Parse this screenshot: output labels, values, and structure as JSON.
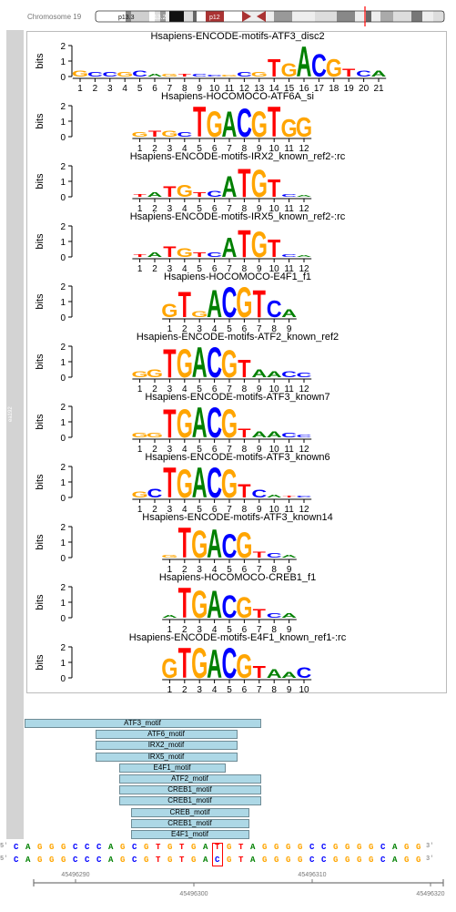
{
  "ideogram": {
    "chromosome_label": "Chromosome 19",
    "bands": [
      "p13.3",
      "p13.2",
      "p12"
    ]
  },
  "track_label": "ea192",
  "colors": {
    "A": "#008000",
    "C": "#0000ff",
    "G": "#ffa500",
    "T": "#ff0000",
    "motif_fill": "#add8e6",
    "highlight": "#ff0000",
    "strip": "#d3d3d3"
  },
  "chart_data": {
    "type": "sequence-logo",
    "ylabel": "bits",
    "yticks": [
      0,
      1,
      2
    ],
    "logos": [
      {
        "title": "Hsapiens-ENCODE-motifs-ATF3_disc2",
        "length": 21,
        "start_col": 1,
        "consensus": "GCCGCAGTCCGCGTGACGTCA",
        "heights": [
          0.4,
          0.3,
          0.3,
          0.3,
          0.4,
          0.2,
          0.2,
          0.2,
          0.2,
          0.1,
          0.1,
          0.3,
          0.3,
          1.2,
          0.9,
          2.0,
          1.5,
          1.2,
          0.5,
          0.4,
          0.4
        ]
      },
      {
        "title": "Hsapiens-HOCOMOCO-ATF6A_si",
        "length": 12,
        "start_col": 5,
        "consensus": "GTGCTGACGTGG",
        "heights": [
          0.3,
          0.4,
          0.4,
          0.3,
          2.0,
          1.7,
          1.7,
          1.9,
          1.7,
          2.0,
          1.2,
          1.3
        ]
      },
      {
        "title": "Hsapiens-ENCODE-motifs-IRX2_known_ref2-:rc",
        "length": 12,
        "start_col": 5,
        "consensus": "TATGTCATGTCA",
        "heights": [
          0.2,
          0.3,
          0.7,
          0.8,
          0.3,
          0.4,
          1.4,
          1.9,
          1.8,
          1.2,
          0.2,
          0.1
        ]
      },
      {
        "title": "Hsapiens-ENCODE-motifs-IRX5_known_ref2-:rc",
        "length": 12,
        "start_col": 5,
        "consensus": "TATGTCATGTCA",
        "heights": [
          0.2,
          0.3,
          0.7,
          0.6,
          0.3,
          0.3,
          1.3,
          1.8,
          1.7,
          1.2,
          0.2,
          0.1
        ]
      },
      {
        "title": "Hsapiens-HOCOMOCO-E4F1_f1",
        "length": 9,
        "start_col": 7,
        "consensus": "GTGACGTCA",
        "heights": [
          0.9,
          1.7,
          0.4,
          1.8,
          2.0,
          2.0,
          1.8,
          1.1,
          0.5
        ]
      },
      {
        "title": "Hsapiens-ENCODE-motifs-ATF2_known_ref2",
        "length": 12,
        "start_col": 5,
        "consensus": "GGTGACGTAACC",
        "heights": [
          0.4,
          0.5,
          1.9,
          1.9,
          2.0,
          2.0,
          1.8,
          1.2,
          0.5,
          0.4,
          0.4,
          0.3
        ]
      },
      {
        "title": "Hsapiens-ENCODE-motifs-ATF3_known7",
        "length": 12,
        "start_col": 5,
        "consensus": "GGTGACGTAACC",
        "heights": [
          0.3,
          0.3,
          1.9,
          1.9,
          2.0,
          2.0,
          1.9,
          0.6,
          0.4,
          0.4,
          0.3,
          0.2
        ]
      },
      {
        "title": "Hsapiens-ENCODE-motifs-ATF3_known6",
        "length": 12,
        "start_col": 5,
        "consensus": "GCTGACGTCATC",
        "heights": [
          0.4,
          0.6,
          2.0,
          1.9,
          2.0,
          2.0,
          1.9,
          0.9,
          0.5,
          0.2,
          0.1,
          0.1
        ]
      },
      {
        "title": "Hsapiens-ENCODE-motifs-ATF3_known14",
        "length": 9,
        "start_col": 7,
        "consensus": "GTGACGTCA",
        "heights": [
          0.2,
          2.0,
          1.8,
          1.9,
          1.6,
          1.7,
          0.4,
          0.3,
          0.2
        ]
      },
      {
        "title": "Hsapiens-HOCOMOCO-CREB1_f1",
        "length": 9,
        "start_col": 7,
        "consensus": "ATGACGTCA",
        "heights": [
          0.2,
          2.0,
          1.8,
          1.8,
          1.5,
          1.4,
          0.6,
          0.3,
          0.3
        ]
      },
      {
        "title": "Hsapiens-ENCODE-motifs-E4F1_known_ref1-:rc",
        "length": 10,
        "start_col": 7,
        "consensus": "GTGACGTAAC",
        "heights": [
          1.3,
          2.0,
          2.0,
          1.9,
          2.0,
          1.6,
          0.8,
          0.6,
          0.4,
          0.7
        ]
      }
    ]
  },
  "motifs": [
    {
      "label": "ATF3_motif",
      "start": 2,
      "end": 21
    },
    {
      "label": "ATF6_motif",
      "start": 8,
      "end": 19
    },
    {
      "label": "IRX2_motif",
      "start": 8,
      "end": 19
    },
    {
      "label": "IRX5_motif",
      "start": 8,
      "end": 19
    },
    {
      "label": "E4F1_motif",
      "start": 10,
      "end": 18
    },
    {
      "label": "ATF2_motif",
      "start": 10,
      "end": 21
    },
    {
      "label": "CREB1_motif",
      "start": 10,
      "end": 21
    },
    {
      "label": "CREB1_motif",
      "start": 10,
      "end": 21
    },
    {
      "label": "CREB_motif",
      "start": 11,
      "end": 20
    },
    {
      "label": "CREB1_motif",
      "start": 11,
      "end": 20
    },
    {
      "label": "E4F1_motif",
      "start": 11,
      "end": 20
    }
  ],
  "sequence": {
    "prefix": "5'",
    "suffix": "3'",
    "ref": "CAGGGCCCAGCGTGTGATGTAGGGGCCGGGGCAGG",
    "alt": "CAGGGCCCAGCGTGTGACGTAGGGGCCGGGGCAGG",
    "variant_index": 17
  },
  "axis": {
    "ticks_top": [
      "45496290",
      "45496310"
    ],
    "ticks_bottom": [
      "45496300",
      "45496320"
    ]
  }
}
